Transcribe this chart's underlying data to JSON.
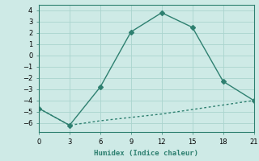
{
  "line1_x": [
    0,
    3,
    6,
    9,
    12,
    15,
    18,
    21
  ],
  "line1_y": [
    -4.7,
    -6.2,
    -2.8,
    2.1,
    3.8,
    2.5,
    -2.3,
    -4.0
  ],
  "line2_x": [
    0,
    3,
    6,
    9,
    12,
    15,
    18,
    21
  ],
  "line2_y": [
    -4.7,
    -6.2,
    -5.8,
    -5.5,
    -5.2,
    -4.8,
    -4.4,
    -4.0
  ],
  "color": "#2e8070",
  "bg_color": "#ceeae6",
  "grid_color": "#aad4ce",
  "xlabel": "Humidex (Indice chaleur)",
  "xlim": [
    0,
    21
  ],
  "ylim": [
    -6.8,
    4.5
  ],
  "xticks": [
    0,
    3,
    6,
    9,
    12,
    15,
    18,
    21
  ],
  "yticks": [
    -6,
    -5,
    -4,
    -3,
    -2,
    -1,
    0,
    1,
    2,
    3,
    4
  ],
  "marker": "D",
  "markersize": 3,
  "linewidth": 1.0
}
